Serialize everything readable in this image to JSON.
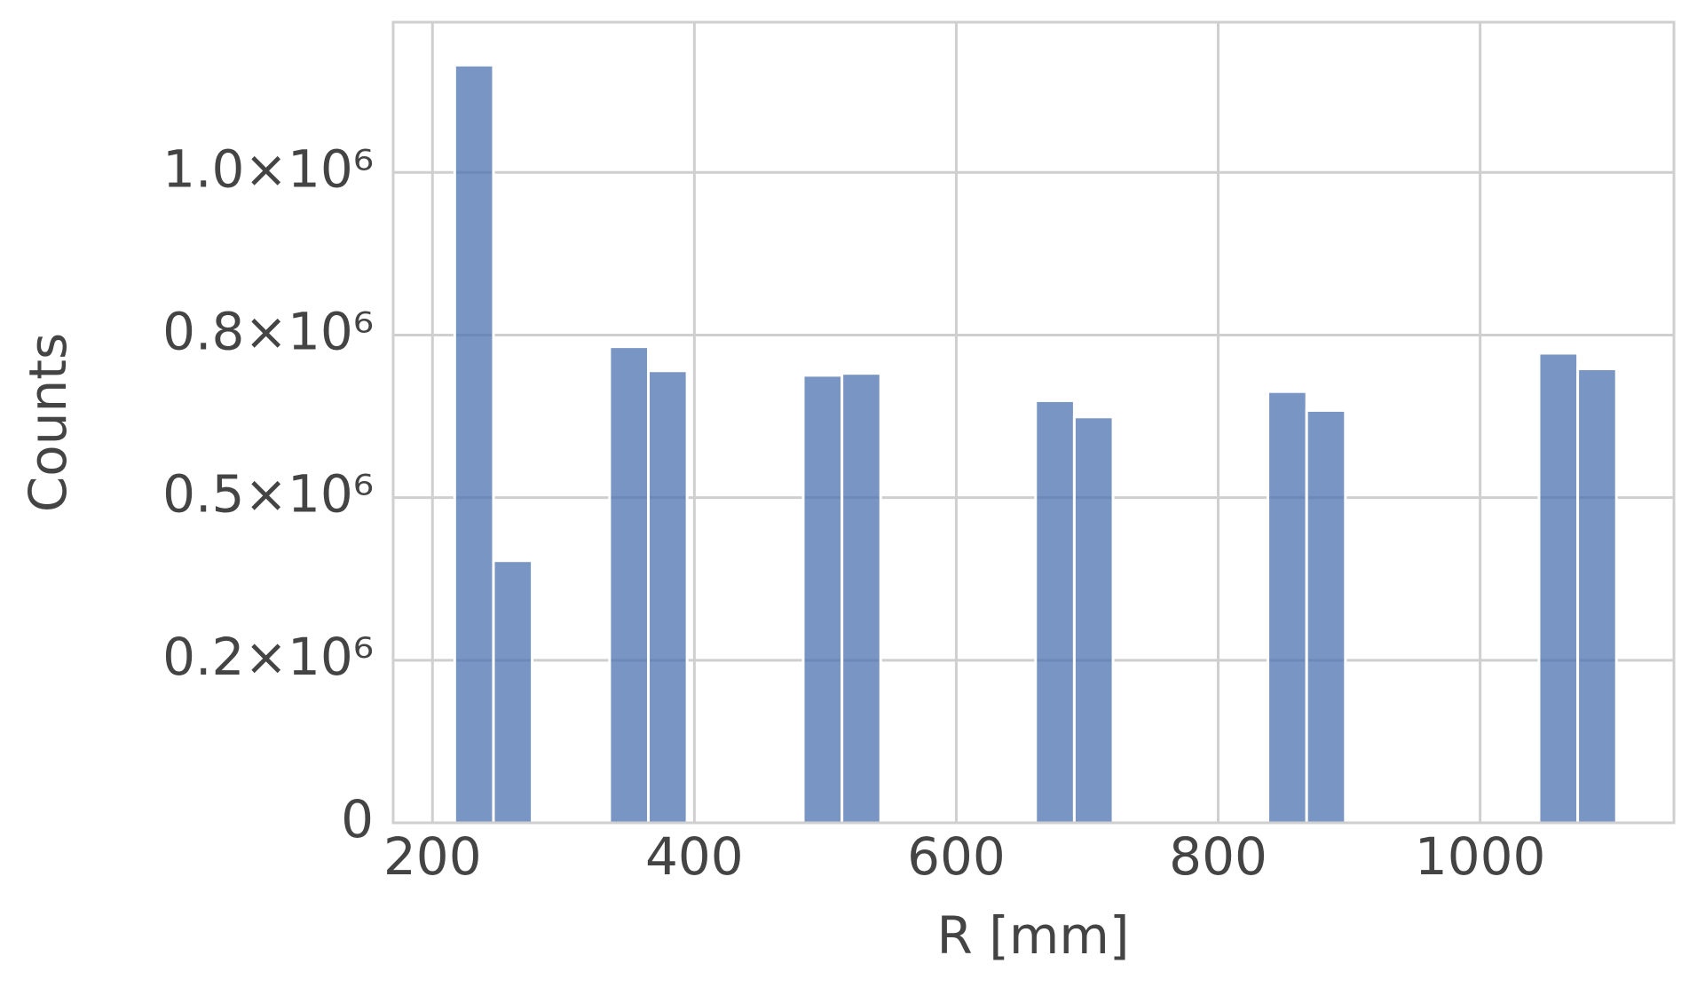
{
  "chart_data": {
    "type": "histogram",
    "x_label": "R [mm]",
    "y_label": "Counts",
    "bins": [
      217,
      246.57,
      276.14,
      305.71,
      335.28,
      364.85,
      394.42,
      423.99,
      453.56,
      483.13,
      512.7,
      542.27,
      571.84,
      601.41,
      630.98,
      660.55,
      690.12,
      719.69,
      749.26,
      778.83,
      808.4,
      837.97,
      867.54,
      897.11,
      926.68,
      956.25,
      985.82,
      1015.39,
      1044.96,
      1074.53,
      1104.1
    ],
    "values": [
      1165000,
      403000,
      0,
      0,
      732000,
      695000,
      0,
      0,
      0,
      688000,
      691000,
      0,
      0,
      0,
      0,
      649000,
      624000,
      0,
      0,
      0,
      0,
      663000,
      634000,
      0,
      0,
      0,
      0,
      0,
      722000,
      698000
    ],
    "color": "#4c72b0",
    "xlim": [
      170,
      1148
    ],
    "xticks": [
      200,
      400,
      600,
      800,
      1000
    ],
    "ylim": [
      0,
      1231000
    ],
    "yticks": [
      0,
      {
        "value": 250000,
        "label": "0.2×10⁶"
      },
      {
        "value": 500000,
        "label": "0.5×10⁶"
      },
      {
        "value": 750000,
        "label": "0.8×10⁶"
      },
      {
        "value": 1000000,
        "label": "1.0×10⁶"
      }
    ],
    "grid": true
  }
}
